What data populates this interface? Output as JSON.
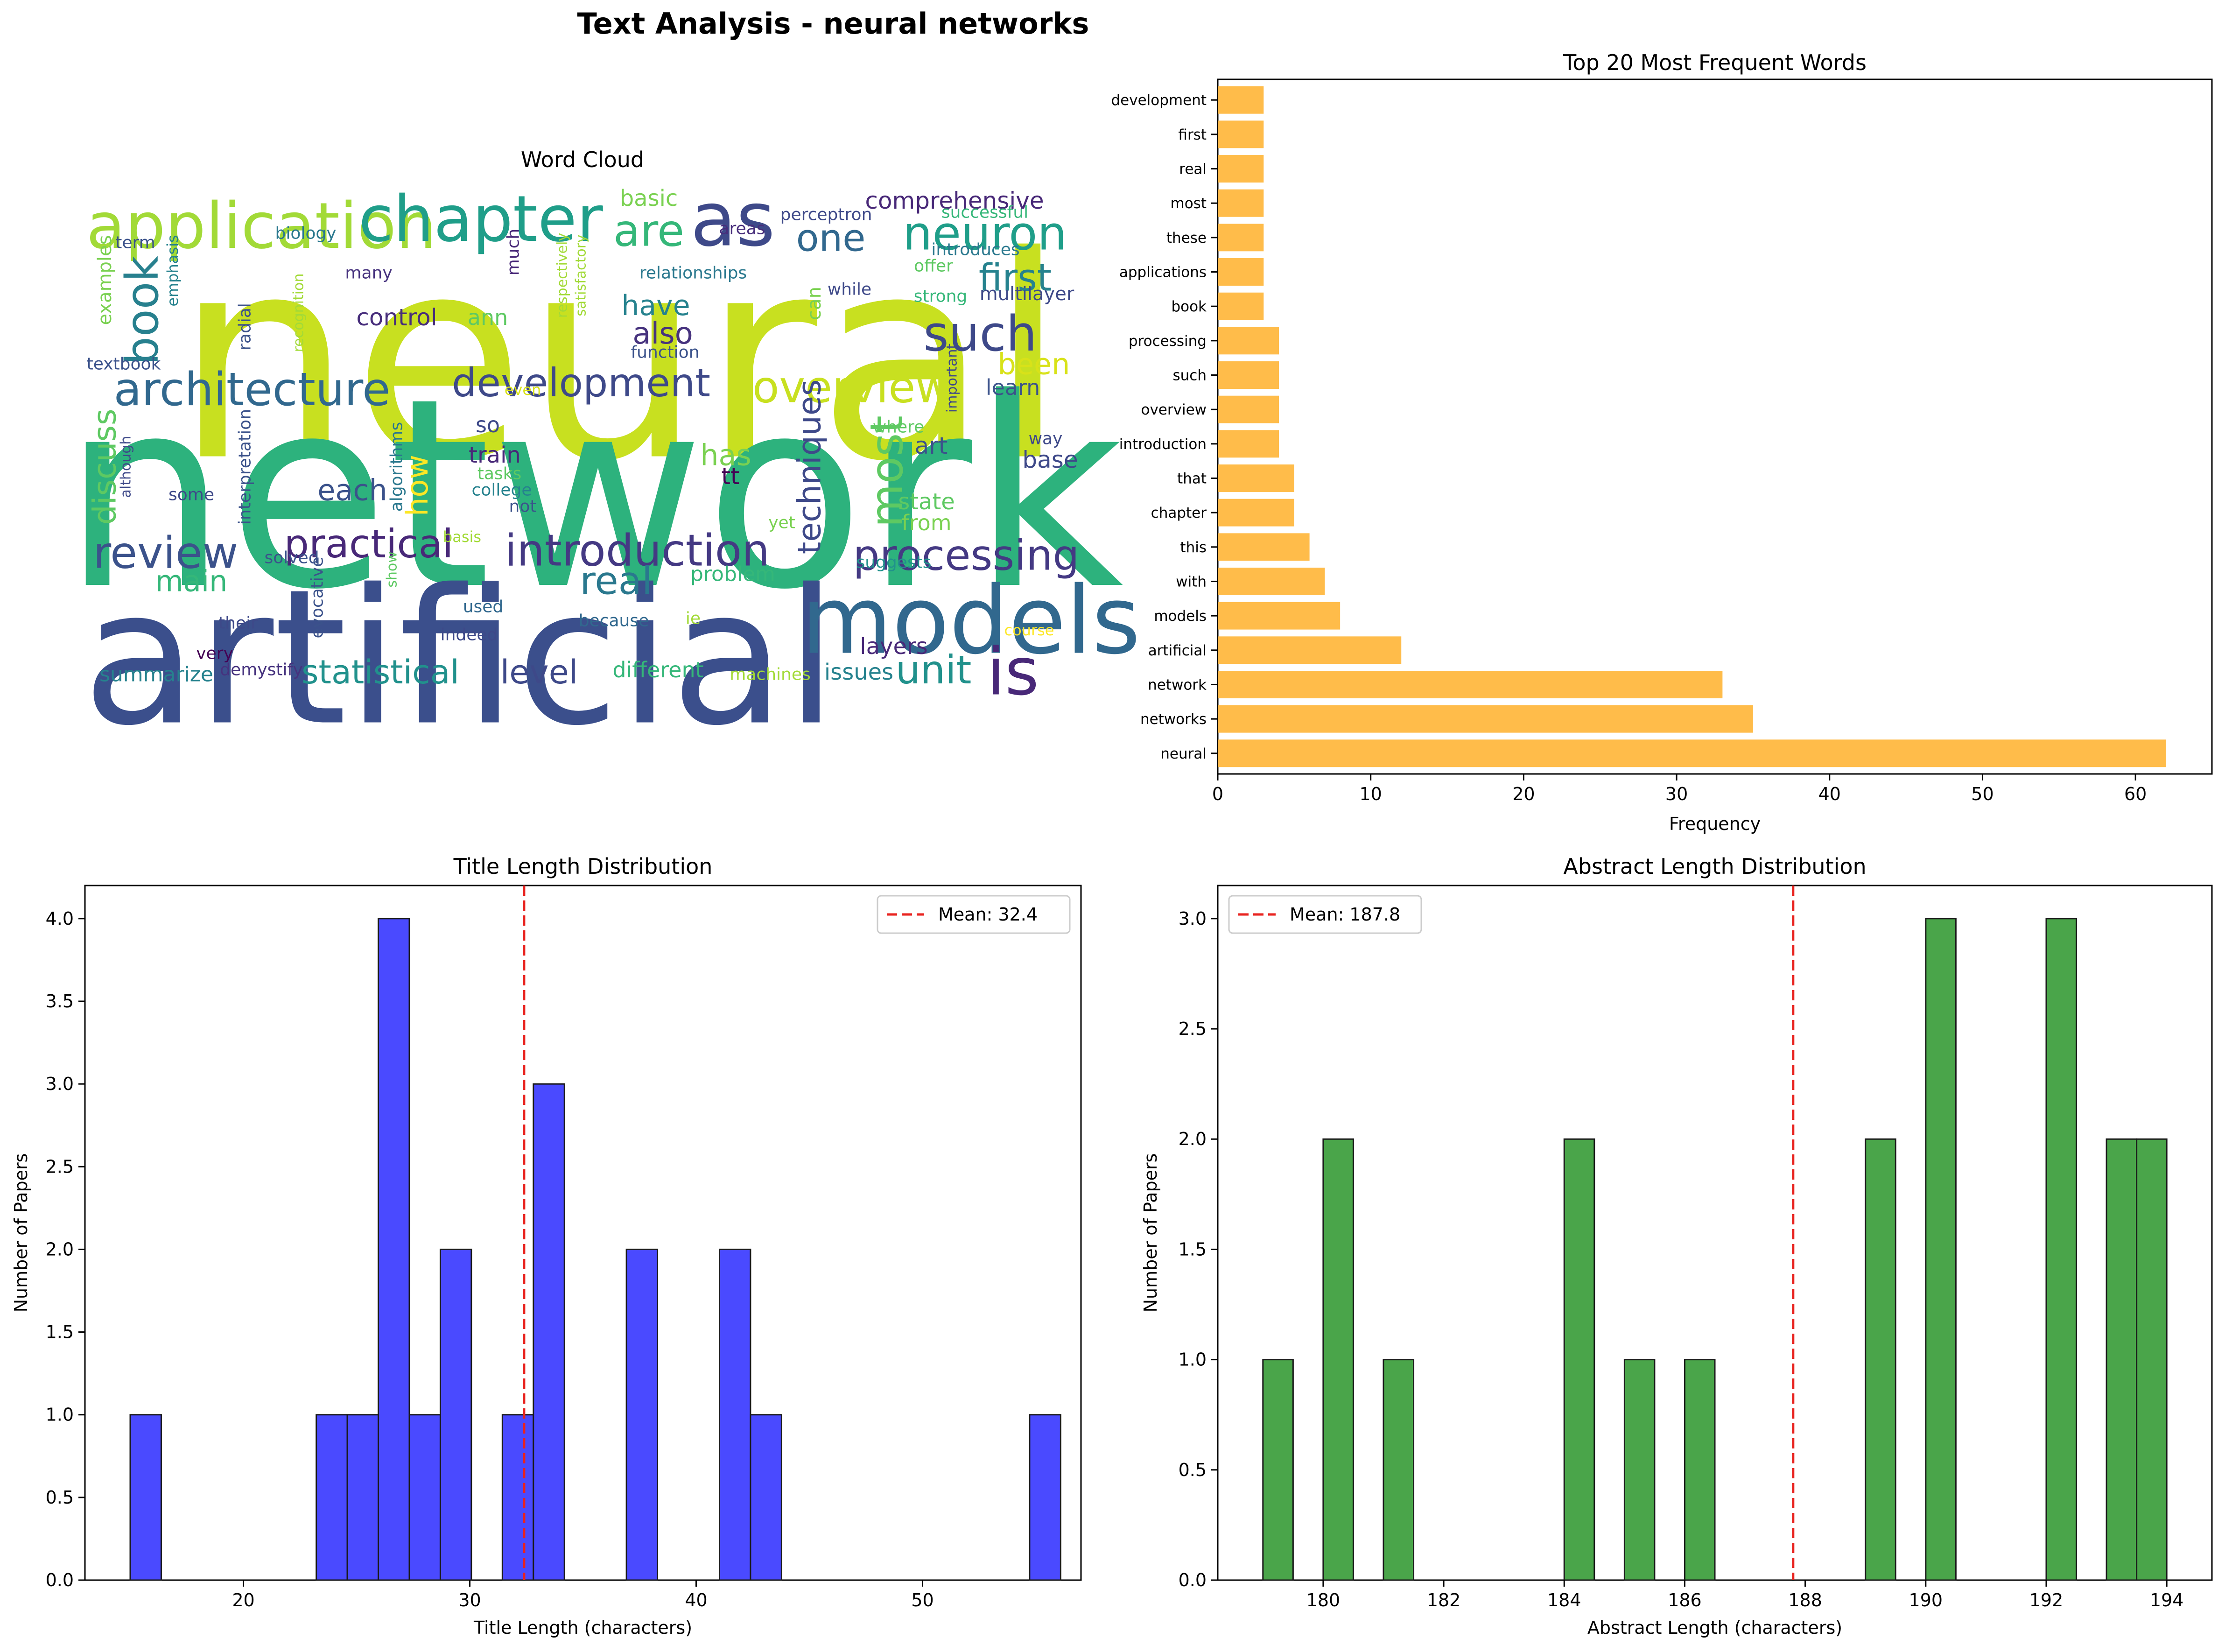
{
  "figure": {
    "suptitle": "Text Analysis - neural networks"
  },
  "wordcloud": {
    "title": "Word Cloud",
    "words": [
      {
        "text": "neural",
        "size": 1.0,
        "color": "#c8e020",
        "rot": 0
      },
      {
        "text": "network",
        "size": 0.95,
        "color": "#2db27d",
        "rot": 0
      },
      {
        "text": "artificial",
        "size": 0.7,
        "color": "#3b4f8c",
        "rot": 0
      },
      {
        "text": "models",
        "size": 0.38,
        "color": "#31688e",
        "rot": 0
      },
      {
        "text": "application",
        "size": 0.26,
        "color": "#a2da37",
        "rot": 0
      },
      {
        "text": "chapter",
        "size": 0.26,
        "color": "#1f9e89",
        "rot": 0
      },
      {
        "text": "as",
        "size": 0.3,
        "color": "#3e4989",
        "rot": 0
      },
      {
        "text": "are",
        "size": 0.18,
        "color": "#35b779",
        "rot": 0
      },
      {
        "text": "is",
        "size": 0.3,
        "color": "#482878",
        "rot": 0
      },
      {
        "text": "neuron",
        "size": 0.2,
        "color": "#1f9e89",
        "rot": 0
      },
      {
        "text": "one",
        "size": 0.18,
        "color": "#31688e",
        "rot": 0
      },
      {
        "text": "first",
        "size": 0.17,
        "color": "#26828e",
        "rot": 0
      },
      {
        "text": "such",
        "size": 0.21,
        "color": "#3e4989",
        "rot": 0
      },
      {
        "text": "architecture",
        "size": 0.18,
        "color": "#31688e",
        "rot": 0
      },
      {
        "text": "development",
        "size": 0.16,
        "color": "#3e4989",
        "rot": 0
      },
      {
        "text": "overview",
        "size": 0.18,
        "color": "#c8e020",
        "rot": 0
      },
      {
        "text": "introduction",
        "size": 0.19,
        "color": "#443983",
        "rot": 0
      },
      {
        "text": "processing",
        "size": 0.18,
        "color": "#443983",
        "rot": 0
      },
      {
        "text": "review",
        "size": 0.18,
        "color": "#3b528b",
        "rot": 0
      },
      {
        "text": "practical",
        "size": 0.16,
        "color": "#482878",
        "rot": 0
      },
      {
        "text": "real",
        "size": 0.17,
        "color": "#2a788e",
        "rot": 0
      },
      {
        "text": "unit",
        "size": 0.16,
        "color": "#21918c",
        "rot": 0
      },
      {
        "text": "statistical",
        "size": 0.14,
        "color": "#21918c",
        "rot": 0
      },
      {
        "text": "level",
        "size": 0.14,
        "color": "#3e4989",
        "rot": 0
      },
      {
        "text": "most",
        "size": 0.17,
        "color": "#5ec962",
        "rot": -90
      },
      {
        "text": "book",
        "size": 0.17,
        "color": "#27808e",
        "rot": -90
      },
      {
        "text": "techniques",
        "size": 0.14,
        "color": "#3e4989",
        "rot": -90
      },
      {
        "text": "discuss",
        "size": 0.14,
        "color": "#5ec962",
        "rot": -90
      },
      {
        "text": "how",
        "size": 0.13,
        "color": "#fde725",
        "rot": -90
      },
      {
        "text": "comprehensive",
        "size": 0.11,
        "color": "#482878",
        "rot": 0
      },
      {
        "text": "have",
        "size": 0.12,
        "color": "#26828e",
        "rot": 0
      },
      {
        "text": "also",
        "size": 0.13,
        "color": "#46327e",
        "rot": 0
      },
      {
        "text": "has",
        "size": 0.13,
        "color": "#7ad151",
        "rot": 0
      },
      {
        "text": "been",
        "size": 0.13,
        "color": "#d8e219",
        "rot": 0
      },
      {
        "text": "each",
        "size": 0.13,
        "color": "#3b528b",
        "rot": 0
      },
      {
        "text": "main",
        "size": 0.12,
        "color": "#35b779",
        "rot": 0
      },
      {
        "text": "control",
        "size": 0.1,
        "color": "#472d7b",
        "rot": 0
      },
      {
        "text": "basic",
        "size": 0.1,
        "color": "#7ad151",
        "rot": 0
      },
      {
        "text": "train",
        "size": 0.1,
        "color": "#482878",
        "rot": 0
      },
      {
        "text": "state",
        "size": 0.1,
        "color": "#5ec962",
        "rot": 0
      },
      {
        "text": "from",
        "size": 0.1,
        "color": "#7ad151",
        "rot": 0
      },
      {
        "text": "learn",
        "size": 0.09,
        "color": "#3b528b",
        "rot": 0
      },
      {
        "text": "art",
        "size": 0.1,
        "color": "#3b528b",
        "rot": 0
      },
      {
        "text": "base",
        "size": 0.1,
        "color": "#3e4989",
        "rot": 0
      },
      {
        "text": "tt",
        "size": 0.1,
        "color": "#440154",
        "rot": 0
      },
      {
        "text": "so",
        "size": 0.09,
        "color": "#3e4989",
        "rot": 0
      },
      {
        "text": "ann",
        "size": 0.09,
        "color": "#5ec962",
        "rot": 0
      },
      {
        "text": "problem",
        "size": 0.09,
        "color": "#35b779",
        "rot": 0
      },
      {
        "text": "layers",
        "size": 0.1,
        "color": "#482878",
        "rot": 0
      },
      {
        "text": "issues",
        "size": 0.1,
        "color": "#26828e",
        "rot": 0
      },
      {
        "text": "different",
        "size": 0.09,
        "color": "#35b779",
        "rot": 0
      },
      {
        "text": "summarize",
        "size": 0.09,
        "color": "#26828e",
        "rot": 0
      },
      {
        "text": "demystify",
        "size": 0.07,
        "color": "#46327e",
        "rot": 0
      },
      {
        "text": "machines",
        "size": 0.07,
        "color": "#a2da37",
        "rot": 0
      },
      {
        "text": "relationships",
        "size": 0.07,
        "color": "#2a788e",
        "rot": 0
      },
      {
        "text": "introduces",
        "size": 0.07,
        "color": "#2a788e",
        "rot": 0
      },
      {
        "text": "successful",
        "size": 0.07,
        "color": "#35b779",
        "rot": 0
      },
      {
        "text": "perceptron",
        "size": 0.07,
        "color": "#3e4989",
        "rot": 0
      },
      {
        "text": "areas",
        "size": 0.07,
        "color": "#472d7b",
        "rot": 0
      },
      {
        "text": "biology",
        "size": 0.07,
        "color": "#2a788e",
        "rot": 0
      },
      {
        "text": "term",
        "size": 0.07,
        "color": "#3b528b",
        "rot": 0
      },
      {
        "text": "many",
        "size": 0.07,
        "color": "#46327e",
        "rot": 0
      },
      {
        "text": "offer",
        "size": 0.07,
        "color": "#5ec962",
        "rot": 0
      },
      {
        "text": "strong",
        "size": 0.07,
        "color": "#35b779",
        "rot": 0
      },
      {
        "text": "multilayer",
        "size": 0.08,
        "color": "#3e4989",
        "rot": 0
      },
      {
        "text": "while",
        "size": 0.07,
        "color": "#3e4989",
        "rot": 0
      },
      {
        "text": "function",
        "size": 0.07,
        "color": "#3b528b",
        "rot": 0
      },
      {
        "text": "textbook",
        "size": 0.07,
        "color": "#3b528b",
        "rot": 0
      },
      {
        "text": "some",
        "size": 0.07,
        "color": "#3e4989",
        "rot": 0
      },
      {
        "text": "college",
        "size": 0.07,
        "color": "#26828e",
        "rot": 0
      },
      {
        "text": "tasks",
        "size": 0.07,
        "color": "#5ec962",
        "rot": 0
      },
      {
        "text": "not",
        "size": 0.07,
        "color": "#3b528b",
        "rot": 0
      },
      {
        "text": "even",
        "size": 0.06,
        "color": "#d8e219",
        "rot": 0
      },
      {
        "text": "basis",
        "size": 0.06,
        "color": "#a2da37",
        "rot": 0
      },
      {
        "text": "yet",
        "size": 0.07,
        "color": "#7ad151",
        "rot": 0
      },
      {
        "text": "where",
        "size": 0.07,
        "color": "#5ec962",
        "rot": 0
      },
      {
        "text": "way",
        "size": 0.07,
        "color": "#3e4989",
        "rot": 0
      },
      {
        "text": "suggests",
        "size": 0.07,
        "color": "#21918c",
        "rot": 0
      },
      {
        "text": "used",
        "size": 0.07,
        "color": "#31688e",
        "rot": 0
      },
      {
        "text": "indeed",
        "size": 0.07,
        "color": "#3e4989",
        "rot": 0
      },
      {
        "text": "because",
        "size": 0.07,
        "color": "#31688e",
        "rot": 0
      },
      {
        "text": "ie",
        "size": 0.07,
        "color": "#a2da37",
        "rot": 0
      },
      {
        "text": "course",
        "size": 0.07,
        "color": "#fde725",
        "rot": 0
      },
      {
        "text": "solved",
        "size": 0.07,
        "color": "#3b528b",
        "rot": 0
      },
      {
        "text": "their",
        "size": 0.07,
        "color": "#3e4989",
        "rot": 0
      },
      {
        "text": "very",
        "size": 0.07,
        "color": "#440154",
        "rot": 0
      },
      {
        "text": "can",
        "size": 0.08,
        "color": "#7ad151",
        "rot": -90
      },
      {
        "text": "much",
        "size": 0.07,
        "color": "#482878",
        "rot": -90
      },
      {
        "text": "examples",
        "size": 0.08,
        "color": "#7ad151",
        "rot": -90
      },
      {
        "text": "emphasis",
        "size": 0.06,
        "color": "#26828e",
        "rot": -90
      },
      {
        "text": "radial",
        "size": 0.07,
        "color": "#3b528b",
        "rot": -90
      },
      {
        "text": "recognition",
        "size": 0.06,
        "color": "#a2da37",
        "rot": -90
      },
      {
        "text": "respectively",
        "size": 0.06,
        "color": "#a2da37",
        "rot": -90
      },
      {
        "text": "satisfactory",
        "size": 0.06,
        "color": "#a2da37",
        "rot": -90
      },
      {
        "text": "interpretation",
        "size": 0.07,
        "color": "#3b528b",
        "rot": -90
      },
      {
        "text": "algorithms",
        "size": 0.07,
        "color": "#2a788e",
        "rot": -90
      },
      {
        "text": "although",
        "size": 0.06,
        "color": "#3e4989",
        "rot": -90
      },
      {
        "text": "important",
        "size": 0.06,
        "color": "#3e4989",
        "rot": -90
      },
      {
        "text": "evocative",
        "size": 0.07,
        "color": "#3b528b",
        "rot": -90
      },
      {
        "text": "show",
        "size": 0.06,
        "color": "#5ec962",
        "rot": -90
      }
    ]
  },
  "chart_data": [
    {
      "type": "bar",
      "orientation": "horizontal",
      "title": "Top 20 Most Frequent Words",
      "xlabel": "Frequency",
      "ylabel": "",
      "categories": [
        "neural",
        "networks",
        "network",
        "artificial",
        "models",
        "with",
        "this",
        "chapter",
        "that",
        "introduction",
        "overview",
        "such",
        "processing",
        "book",
        "applications",
        "these",
        "most",
        "real",
        "first",
        "development"
      ],
      "values": [
        62,
        35,
        33,
        12,
        8,
        7,
        6,
        5,
        5,
        4,
        4,
        4,
        4,
        3,
        3,
        3,
        3,
        3,
        3,
        3
      ],
      "xlim": [
        0,
        65
      ],
      "xticks": [
        0,
        10,
        20,
        30,
        40,
        50,
        60
      ],
      "color": "#ffbc4a",
      "grid": false
    },
    {
      "type": "bar",
      "subtype": "histogram",
      "title": "Title Length Distribution",
      "xlabel": "Title Length (characters)",
      "ylabel": "Number of Papers",
      "bin_start": 15,
      "bin_width": 1.37,
      "counts": [
        1,
        0,
        0,
        0,
        0,
        0,
        1,
        1,
        4,
        1,
        2,
        0,
        1,
        3,
        0,
        0,
        2,
        0,
        0,
        2,
        1,
        0,
        0,
        0,
        0,
        0,
        0,
        0,
        0,
        1
      ],
      "xlim": [
        13.0,
        57.0
      ],
      "ylim": [
        0,
        4.2
      ],
      "xticks": [
        20,
        30,
        40,
        50
      ],
      "yticks": [
        0.0,
        0.5,
        1.0,
        1.5,
        2.0,
        2.5,
        3.0,
        3.5,
        4.0
      ],
      "mean": 32.4,
      "mean_label": "Mean: 32.4",
      "color": "#4a4aff",
      "legend": "top-right"
    },
    {
      "type": "bar",
      "subtype": "histogram",
      "title": "Abstract Length Distribution",
      "xlabel": "Abstract Length (characters)",
      "ylabel": "Number of Papers",
      "bin_start": 179,
      "bin_width": 0.5,
      "counts": [
        1,
        0,
        2,
        0,
        1,
        0,
        0,
        0,
        0,
        0,
        2,
        0,
        1,
        0,
        1,
        0,
        0,
        0,
        0,
        0,
        2,
        0,
        3,
        0,
        0,
        0,
        3,
        0,
        2,
        2
      ],
      "xlim": [
        178.25,
        194.75
      ],
      "ylim": [
        0,
        3.15
      ],
      "xticks": [
        180,
        182,
        184,
        186,
        188,
        190,
        192,
        194
      ],
      "yticks": [
        0.0,
        0.5,
        1.0,
        1.5,
        2.0,
        2.5,
        3.0
      ],
      "mean": 187.8,
      "mean_label": "Mean: 187.8",
      "color": "#4aa54a",
      "legend": "top-left"
    }
  ]
}
